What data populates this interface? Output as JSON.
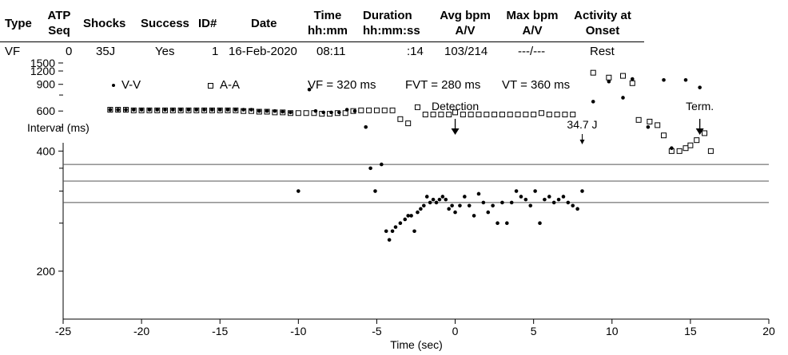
{
  "table": {
    "headers": {
      "type": "Type",
      "atp_seq": [
        "ATP",
        "Seq"
      ],
      "shocks": "Shocks",
      "success": "Success",
      "id": "ID#",
      "date": "Date",
      "time": [
        "Time",
        "hh:mm"
      ],
      "duration": [
        "Duration",
        "hh:mm:ss"
      ],
      "avg_bpm": [
        "Avg bpm",
        "A/V"
      ],
      "max_bpm": [
        "Max bpm",
        "A/V"
      ],
      "activity": [
        "Activity at",
        "Onset"
      ]
    },
    "row": {
      "type": "VF",
      "atp_seq": "0",
      "shocks": "35J",
      "success": "Yes",
      "id": "1",
      "date": "16-Feb-2020",
      "time": "08:11",
      "duration": ":14",
      "avg_bpm": "103/214",
      "max_bpm": "---/---",
      "activity": "Rest"
    }
  },
  "legend": {
    "vv_label": "V-V",
    "aa_label": "A-A",
    "vf": "VF = 320 ms",
    "fvt": "FVT = 280 ms",
    "vt": "VT = 360 ms"
  },
  "chart_data": {
    "type": "scatter",
    "ylabel": "Interval (ms)",
    "xlabel": "Time (sec)",
    "xlim": [
      -25,
      20
    ],
    "x_ticks": [
      -25,
      -20,
      -15,
      -10,
      -5,
      0,
      5,
      10,
      15,
      20
    ],
    "y_ticks": [
      200,
      400,
      600,
      900,
      1200,
      1500
    ],
    "threshold_lines": [
      280,
      320,
      360
    ],
    "annotations": [
      {
        "label": "Detection",
        "x": 0,
        "arrow": "large"
      },
      {
        "label": "34.7 J",
        "x": 8.1,
        "arrow": "small"
      },
      {
        "label": "Term.",
        "x": 15.6,
        "arrow": "large"
      }
    ],
    "series": [
      {
        "name": "V-V",
        "marker": "dot",
        "points": [
          [
            -22.0,
            610
          ],
          [
            -21.5,
            610
          ],
          [
            -21.0,
            610
          ],
          [
            -20.5,
            610
          ],
          [
            -20.0,
            610
          ],
          [
            -19.5,
            610
          ],
          [
            -19.0,
            610
          ],
          [
            -18.5,
            610
          ],
          [
            -18.0,
            610
          ],
          [
            -17.5,
            610
          ],
          [
            -17.0,
            610
          ],
          [
            -16.5,
            610
          ],
          [
            -16.0,
            610
          ],
          [
            -15.5,
            610
          ],
          [
            -15.0,
            610
          ],
          [
            -14.5,
            610
          ],
          [
            -14.0,
            610
          ],
          [
            -13.5,
            610
          ],
          [
            -13.0,
            610
          ],
          [
            -12.5,
            600
          ],
          [
            -12.0,
            600
          ],
          [
            -11.5,
            600
          ],
          [
            -11.0,
            595
          ],
          [
            -10.5,
            590
          ],
          [
            -10.0,
            300
          ],
          [
            -9.3,
            820
          ],
          [
            -8.9,
            600
          ],
          [
            -8.4,
            590
          ],
          [
            -7.9,
            590
          ],
          [
            -7.4,
            590
          ],
          [
            -6.9,
            610
          ],
          [
            -6.4,
            600
          ],
          [
            -5.7,
            500
          ],
          [
            -5.4,
            350
          ],
          [
            -5.1,
            300
          ],
          [
            -4.7,
            360
          ],
          [
            -4.4,
            240
          ],
          [
            -4.2,
            230
          ],
          [
            -4.0,
            240
          ],
          [
            -3.8,
            245
          ],
          [
            -3.5,
            250
          ],
          [
            -3.2,
            255
          ],
          [
            -3.0,
            260
          ],
          [
            -2.8,
            260
          ],
          [
            -2.6,
            240
          ],
          [
            -2.4,
            265
          ],
          [
            -2.2,
            270
          ],
          [
            -2.0,
            275
          ],
          [
            -1.8,
            290
          ],
          [
            -1.6,
            280
          ],
          [
            -1.4,
            285
          ],
          [
            -1.2,
            280
          ],
          [
            -1.0,
            285
          ],
          [
            -0.8,
            290
          ],
          [
            -0.6,
            285
          ],
          [
            -0.4,
            270
          ],
          [
            -0.2,
            275
          ],
          [
            0.0,
            265
          ],
          [
            0.3,
            275
          ],
          [
            0.6,
            290
          ],
          [
            0.9,
            275
          ],
          [
            1.2,
            260
          ],
          [
            1.5,
            295
          ],
          [
            1.8,
            280
          ],
          [
            2.1,
            265
          ],
          [
            2.4,
            275
          ],
          [
            2.7,
            250
          ],
          [
            3.0,
            280
          ],
          [
            3.3,
            250
          ],
          [
            3.6,
            280
          ],
          [
            3.9,
            300
          ],
          [
            4.2,
            290
          ],
          [
            4.5,
            285
          ],
          [
            4.8,
            275
          ],
          [
            5.1,
            300
          ],
          [
            5.4,
            250
          ],
          [
            5.7,
            285
          ],
          [
            6.0,
            290
          ],
          [
            6.3,
            280
          ],
          [
            6.6,
            285
          ],
          [
            6.9,
            290
          ],
          [
            7.2,
            280
          ],
          [
            7.5,
            275
          ],
          [
            7.8,
            270
          ],
          [
            8.1,
            300
          ],
          [
            8.8,
            680
          ],
          [
            9.8,
            950
          ],
          [
            10.7,
            720
          ],
          [
            11.3,
            1000
          ],
          [
            12.3,
            500
          ],
          [
            13.3,
            980
          ],
          [
            13.8,
            410
          ],
          [
            14.7,
            980
          ],
          [
            15.6,
            850
          ]
        ]
      },
      {
        "name": "A-A",
        "marker": "square",
        "points": [
          [
            -22.0,
            610
          ],
          [
            -21.5,
            610
          ],
          [
            -21.0,
            610
          ],
          [
            -20.5,
            605
          ],
          [
            -20.0,
            605
          ],
          [
            -19.5,
            605
          ],
          [
            -19.0,
            605
          ],
          [
            -18.5,
            605
          ],
          [
            -18.0,
            605
          ],
          [
            -17.5,
            605
          ],
          [
            -17.0,
            605
          ],
          [
            -16.5,
            605
          ],
          [
            -16.0,
            605
          ],
          [
            -15.5,
            605
          ],
          [
            -15.0,
            605
          ],
          [
            -14.5,
            605
          ],
          [
            -14.0,
            605
          ],
          [
            -13.5,
            600
          ],
          [
            -13.0,
            600
          ],
          [
            -12.5,
            595
          ],
          [
            -12.0,
            595
          ],
          [
            -11.5,
            590
          ],
          [
            -11.0,
            590
          ],
          [
            -10.5,
            585
          ],
          [
            -10.0,
            585
          ],
          [
            -9.5,
            585
          ],
          [
            -9.0,
            585
          ],
          [
            -8.5,
            580
          ],
          [
            -8.0,
            580
          ],
          [
            -7.5,
            585
          ],
          [
            -7.0,
            585
          ],
          [
            -6.5,
            600
          ],
          [
            -6.0,
            605
          ],
          [
            -5.5,
            605
          ],
          [
            -5.0,
            605
          ],
          [
            -4.5,
            605
          ],
          [
            -4.0,
            605
          ],
          [
            -3.5,
            545
          ],
          [
            -3.0,
            520
          ],
          [
            -2.4,
            630
          ],
          [
            -1.9,
            575
          ],
          [
            -1.4,
            575
          ],
          [
            -0.9,
            575
          ],
          [
            -0.4,
            575
          ],
          [
            0.0,
            590
          ],
          [
            0.5,
            575
          ],
          [
            1.0,
            575
          ],
          [
            1.5,
            575
          ],
          [
            2.0,
            575
          ],
          [
            2.5,
            575
          ],
          [
            3.0,
            575
          ],
          [
            3.5,
            575
          ],
          [
            4.0,
            575
          ],
          [
            4.5,
            575
          ],
          [
            5.0,
            575
          ],
          [
            5.5,
            585
          ],
          [
            6.0,
            575
          ],
          [
            6.5,
            575
          ],
          [
            7.0,
            575
          ],
          [
            7.5,
            575
          ],
          [
            8.8,
            1150
          ],
          [
            9.8,
            1030
          ],
          [
            10.7,
            1070
          ],
          [
            11.3,
            920
          ],
          [
            11.7,
            540
          ],
          [
            12.4,
            530
          ],
          [
            12.9,
            510
          ],
          [
            13.3,
            460
          ],
          [
            13.8,
            400
          ],
          [
            14.3,
            400
          ],
          [
            14.7,
            410
          ],
          [
            15.0,
            420
          ],
          [
            15.4,
            440
          ],
          [
            15.9,
            470
          ],
          [
            16.3,
            400
          ]
        ]
      }
    ]
  }
}
